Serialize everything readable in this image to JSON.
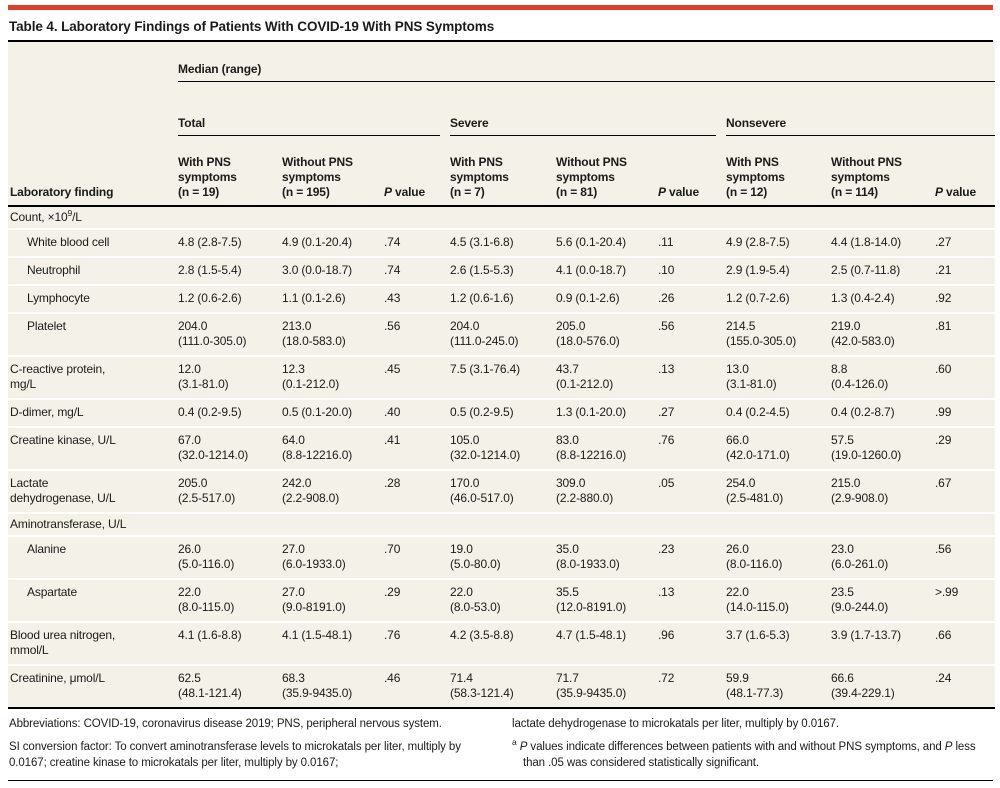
{
  "accent_color": "#d9402d",
  "background_color": "#f3f1e8",
  "title": "Table 4. Laboratory Findings of Patients With COVID-19 With PNS Symptoms",
  "table": {
    "corner_label": "Laboratory finding",
    "span_header": "Median (range)",
    "groups": [
      {
        "label": "Total",
        "columns": [
          "With PNS\nsymptoms\n(n = 19)",
          "Without PNS\nsymptoms\n(n = 195)",
          "*P* value"
        ]
      },
      {
        "label": "Severe",
        "columns": [
          "With PNS\nsymptoms\n(n = 7)",
          "Without PNS\nsymptoms\n(n = 81)",
          "*P* value"
        ]
      },
      {
        "label": "Nonsevere",
        "columns": [
          "With PNS\nsymptoms\n(n = 12)",
          "Without PNS\nsymptoms\n(n = 114)",
          "*P* value"
        ]
      }
    ],
    "rows": [
      {
        "type": "section",
        "label": "Count, ×10^9^/L"
      },
      {
        "type": "data",
        "indent": true,
        "label": "White blood cell",
        "cells": [
          "4.8 (2.8-7.5)",
          "4.9 (0.1-20.4)",
          ".74",
          "4.5 (3.1-6.8)",
          "5.6 (0.1-20.4)",
          ".11",
          "4.9 (2.8-7.5)",
          "4.4 (1.8-14.0)",
          ".27"
        ]
      },
      {
        "type": "data",
        "indent": true,
        "label": "Neutrophil",
        "cells": [
          "2.8 (1.5-5.4)",
          "3.0 (0.0-18.7)",
          ".74",
          "2.6 (1.5-5.3)",
          "4.1 (0.0-18.7)",
          ".10",
          "2.9 (1.9-5.4)",
          "2.5 (0.7-11.8)",
          ".21"
        ]
      },
      {
        "type": "data",
        "indent": true,
        "label": "Lymphocyte",
        "cells": [
          "1.2 (0.6-2.6)",
          "1.1 (0.1-2.6)",
          ".43",
          "1.2 (0.6-1.6)",
          "0.9 (0.1-2.6)",
          ".26",
          "1.2 (0.7-2.6)",
          "1.3 (0.4-2.4)",
          ".92"
        ]
      },
      {
        "type": "data",
        "indent": true,
        "label": "Platelet",
        "cells": [
          "204.0\n(111.0-305.0)",
          "213.0\n(18.0-583.0)",
          ".56",
          "204.0\n(111.0-245.0)",
          "205.0\n(18.0-576.0)",
          ".56",
          "214.5\n(155.0-305.0)",
          "219.0\n(42.0-583.0)",
          ".81"
        ]
      },
      {
        "type": "data",
        "indent": false,
        "label": "C-reactive protein,\nmg/L",
        "cells": [
          "12.0\n(3.1-81.0)",
          "12.3\n(0.1-212.0)",
          ".45",
          "7.5 (3.1-76.4)",
          "43.7\n(0.1-212.0)",
          ".13",
          "13.0\n(3.1-81.0)",
          "8.8\n(0.4-126.0)",
          ".60"
        ]
      },
      {
        "type": "data",
        "indent": false,
        "label": "D-dimer, mg/L",
        "cells": [
          "0.4 (0.2-9.5)",
          "0.5 (0.1-20.0)",
          ".40",
          "0.5 (0.2-9.5)",
          "1.3 (0.1-20.0)",
          ".27",
          "0.4 (0.2-4.5)",
          "0.4 (0.2-8.7)",
          ".99"
        ]
      },
      {
        "type": "data",
        "indent": false,
        "label": "Creatine kinase, U/L",
        "cells": [
          "67.0\n(32.0-1214.0)",
          "64.0\n(8.8-12216.0)",
          ".41",
          "105.0\n(32.0-1214.0)",
          "83.0\n(8.8-12216.0)",
          ".76",
          "66.0\n(42.0-171.0)",
          "57.5\n(19.0-1260.0)",
          ".29"
        ]
      },
      {
        "type": "data",
        "indent": false,
        "label": "Lactate\ndehydrogenase, U/L",
        "cells": [
          "205.0\n(2.5-517.0)",
          "242.0\n(2.2-908.0)",
          ".28",
          "170.0\n(46.0-517.0)",
          "309.0\n(2.2-880.0)",
          ".05",
          "254.0\n(2.5-481.0)",
          "215.0\n(2.9-908.0)",
          ".67"
        ]
      },
      {
        "type": "section",
        "label": "Aminotransferase, U/L"
      },
      {
        "type": "data",
        "indent": true,
        "label": "Alanine",
        "cells": [
          "26.0\n(5.0-116.0)",
          "27.0\n(6.0-1933.0)",
          ".70",
          "19.0\n(5.0-80.0)",
          "35.0\n(8.0-1933.0)",
          ".23",
          "26.0\n(8.0-116.0)",
          "23.0\n(6.0-261.0)",
          ".56"
        ]
      },
      {
        "type": "data",
        "indent": true,
        "label": "Aspartate",
        "cells": [
          "22.0\n(8.0-115.0)",
          "27.0\n(9.0-8191.0)",
          ".29",
          "22.0\n(8.0-53.0)",
          "35.5\n(12.0-8191.0)",
          ".13",
          "22.0\n(14.0-115.0)",
          "23.5\n(9.0-244.0)",
          ">.99"
        ]
      },
      {
        "type": "data",
        "indent": false,
        "label": "Blood urea nitrogen,\nmmol/L",
        "cells": [
          "4.1 (1.6-8.8)",
          "4.1 (1.5-48.1)",
          ".76",
          "4.2 (3.5-8.8)",
          "4.7 (1.5-48.1)",
          ".96",
          "3.7 (1.6-5.3)",
          "3.9 (1.7-13.7)",
          ".66"
        ]
      },
      {
        "type": "data",
        "indent": false,
        "label": "Creatinine, μmol/L",
        "cells": [
          "62.5\n(48.1-121.4)",
          "68.3\n(35.9-9435.0)",
          ".46",
          "71.4\n(58.3-121.4)",
          "71.7\n(35.9-9435.0)",
          ".72",
          "59.9\n(48.1-77.3)",
          "66.6\n(39.4-229.1)",
          ".24"
        ]
      }
    ]
  },
  "footnotes": {
    "abbreviations": "Abbreviations: COVID-19, coronavirus disease 2019; PNS, peripheral nervous system.",
    "si_conversion": "SI conversion factor: To convert aminotransferase levels to microkatals per liter, multiply by 0.0167; creatine kinase to microkatals per liter, multiply by 0.0167;",
    "si_continuation": "lactate dehydrogenase to microkatals per liter, multiply by 0.0167.",
    "p_value_note": "^a^ *P* values indicate differences between patients with and without PNS symptoms, and *P* less than .05 was considered statistically significant."
  }
}
